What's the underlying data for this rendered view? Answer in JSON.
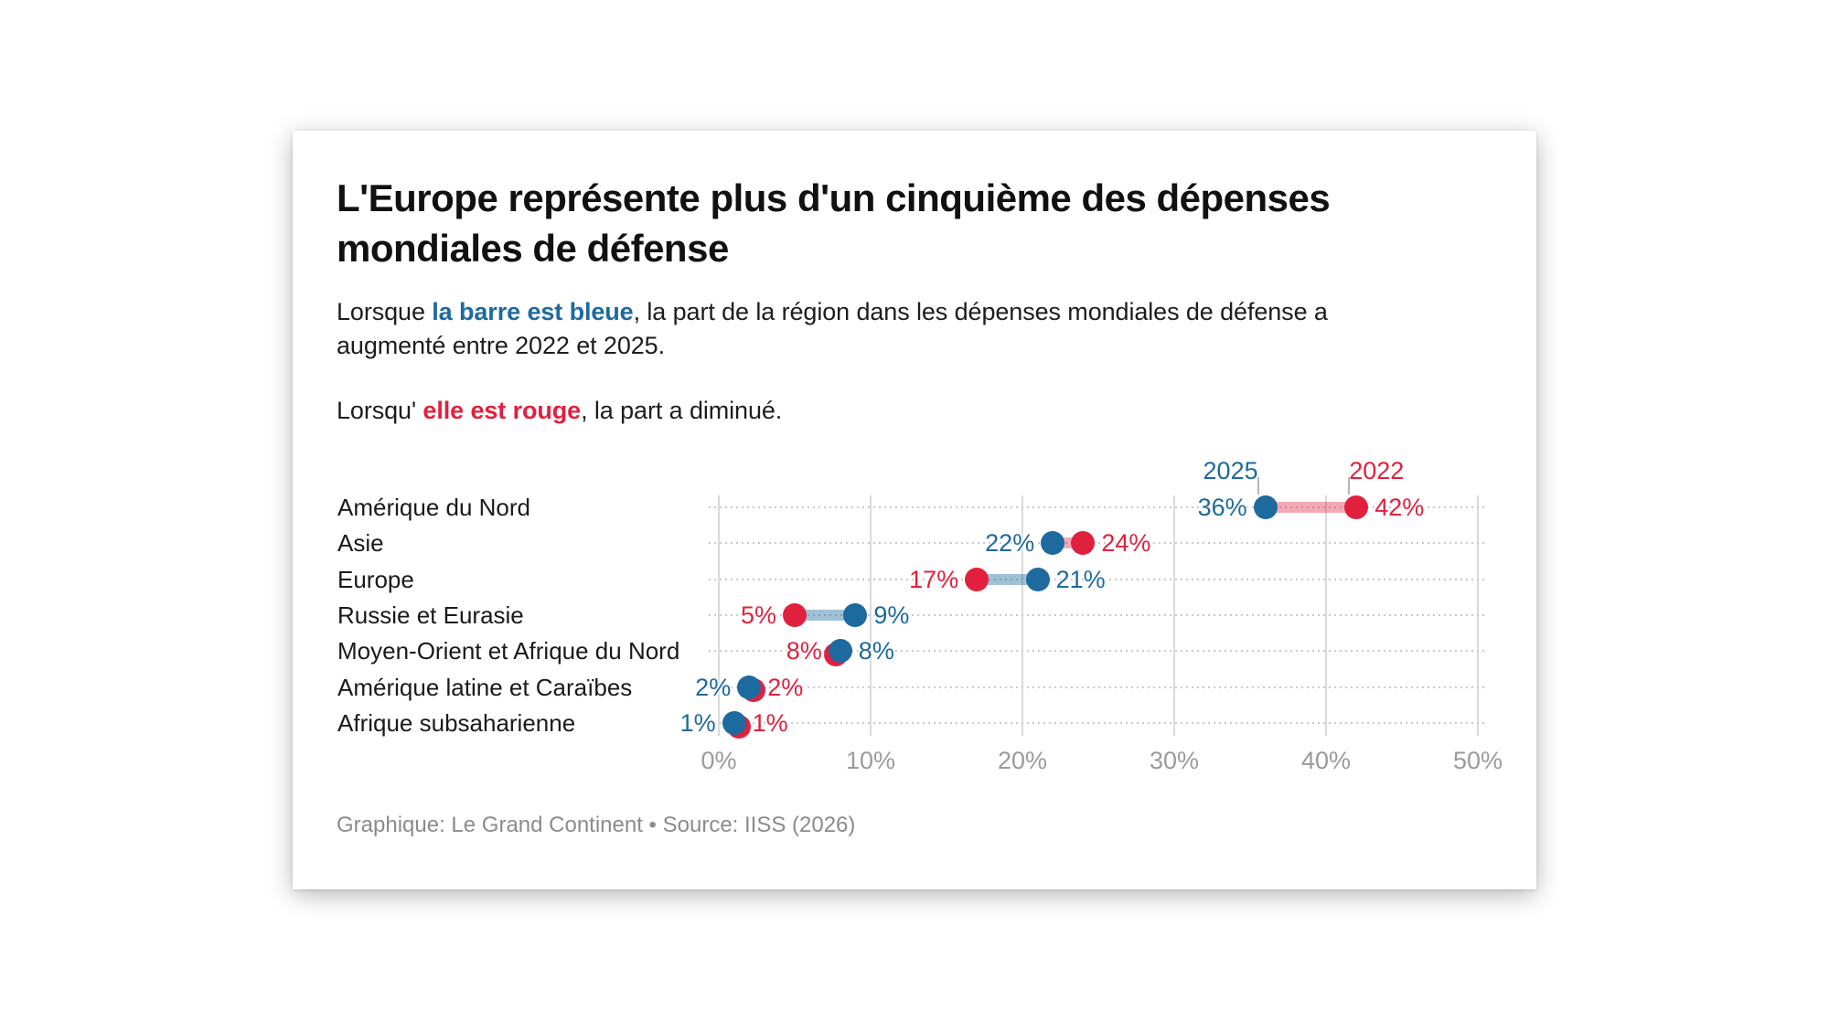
{
  "header": {
    "title_lines": [
      "L'Europe représente plus d'un cinquième des dépenses",
      "mondiales de défense"
    ]
  },
  "description": {
    "p1_prefix": "Lorsque ",
    "p1_highlight": "la barre est bleue",
    "p1_line1_rest": ", la part de la région dans les dépenses mondiales de défense a",
    "p1_line2": "augmenté entre 2022 et 2025.",
    "p2_prefix": "Lorsqu' ",
    "p2_highlight": "elle est rouge",
    "p2_suffix": ", la part a diminué."
  },
  "footer": {
    "credit": "Graphique: Le Grand Continent • Source: IISS (2026)"
  },
  "colors": {
    "blue": "#1d6a9e",
    "red": "#e1203e",
    "bar_blue": "rgba(29,106,158,0.42)",
    "bar_red": "rgba(225,32,62,0.38)",
    "grid_line": "#dadada",
    "dotted_line": "#c9c9c9",
    "axis_text": "#9b9b9b",
    "footer_text": "#8b8b8b"
  },
  "chart_data": {
    "type": "dumbbell",
    "title": "L'Europe représente plus d'un cinquième des dépenses mondiales de défense",
    "legend": {
      "blue_label": "2025",
      "red_label": "2022",
      "position": "above-first-row"
    },
    "x_axis": {
      "min": 0,
      "max": 50,
      "grid": true,
      "ticks": [
        {
          "label": "0%",
          "value": 0
        },
        {
          "label": "10%",
          "value": 10
        },
        {
          "label": "20%",
          "value": 20
        },
        {
          "label": "30%",
          "value": 30
        },
        {
          "label": "40%",
          "value": 40
        },
        {
          "label": "50%",
          "value": 50
        }
      ]
    },
    "rows": [
      {
        "category": "Amérique du Nord",
        "value_2025": 36,
        "value_2022": 42,
        "change": "down",
        "bar": "red",
        "left_label": {
          "text": "36%",
          "color": "blue"
        },
        "right_label": {
          "text": "42%",
          "color": "red"
        },
        "red_dot_offset": [
          0,
          0
        ]
      },
      {
        "category": "Asie",
        "value_2025": 22,
        "value_2022": 24,
        "change": "down",
        "bar": "red",
        "left_label": {
          "text": "22%",
          "color": "blue"
        },
        "right_label": {
          "text": "24%",
          "color": "red"
        },
        "red_dot_offset": [
          0,
          0
        ]
      },
      {
        "category": "Europe",
        "value_2025": 21,
        "value_2022": 17,
        "change": "up",
        "bar": "blue",
        "left_label": {
          "text": "17%",
          "color": "red"
        },
        "right_label": {
          "text": "21%",
          "color": "blue"
        },
        "red_dot_offset": [
          0,
          0
        ]
      },
      {
        "category": "Russie et Eurasie",
        "value_2025": 9,
        "value_2022": 5,
        "change": "up",
        "bar": "blue",
        "left_label": {
          "text": "5%",
          "color": "red"
        },
        "right_label": {
          "text": "9%",
          "color": "blue"
        },
        "red_dot_offset": [
          0,
          0
        ]
      },
      {
        "category": "Moyen-Orient et Afrique du Nord",
        "value_2025": 8,
        "value_2022": 8,
        "change": "flat",
        "bar": "none",
        "left_label": {
          "text": "8%",
          "color": "red"
        },
        "right_label": {
          "text": "8%",
          "color": "blue"
        },
        "red_dot_offset": [
          -5,
          4
        ]
      },
      {
        "category": "Amérique latine et Caraïbes",
        "value_2025": 2,
        "value_2022": 2,
        "change": "flat",
        "bar": "none",
        "left_label": {
          "text": "2%",
          "color": "blue"
        },
        "right_label": {
          "text": "2%",
          "color": "red"
        },
        "red_dot_offset": [
          5,
          3
        ]
      },
      {
        "category": "Afrique subsaharienne",
        "value_2025": 1,
        "value_2022": 1,
        "change": "flat",
        "bar": "none",
        "left_label": {
          "text": "1%",
          "color": "blue"
        },
        "right_label": {
          "text": "1%",
          "color": "red"
        },
        "red_dot_offset": [
          5,
          4
        ]
      }
    ]
  }
}
